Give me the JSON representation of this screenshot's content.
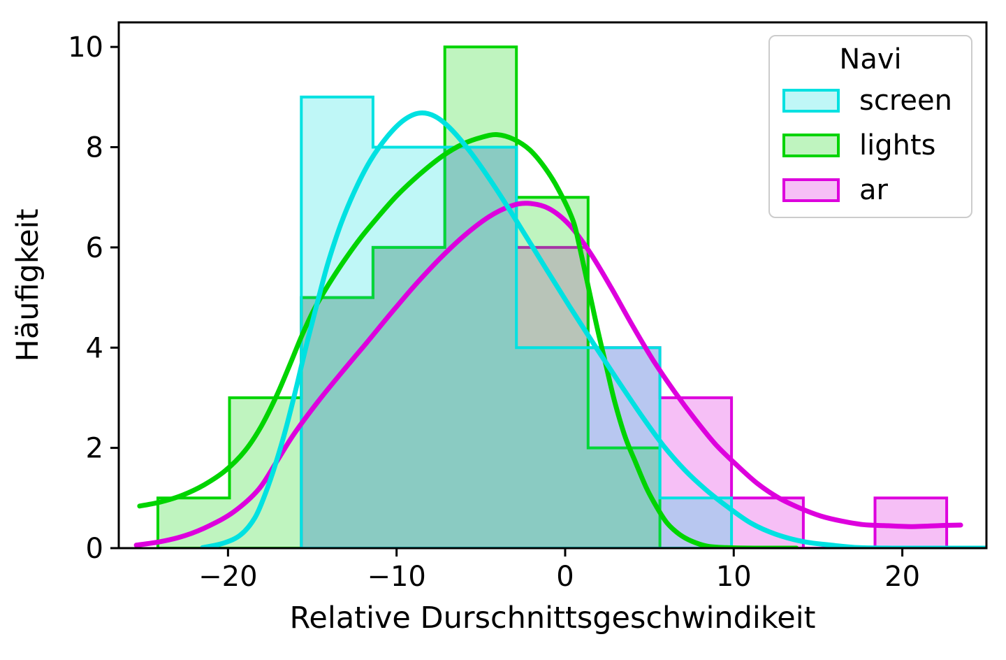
{
  "chart_data": {
    "type": "histogram+kde",
    "xlabel": "Relative Durschnittsgeschwindikeit",
    "ylabel": "Häufigkeit",
    "legend_title": "Navi",
    "legend_position": "upper right",
    "grid": false,
    "xlim": [
      -26.48,
      24.99
    ],
    "ylim": [
      0,
      10.49
    ],
    "x_ticks": [
      {
        "value": -20,
        "label": "−20"
      },
      {
        "value": -10,
        "label": "−10"
      },
      {
        "value": 0,
        "label": "0"
      },
      {
        "value": 10,
        "label": "10"
      },
      {
        "value": 20,
        "label": "20"
      }
    ],
    "y_ticks": [
      {
        "value": 0,
        "label": "0"
      },
      {
        "value": 2,
        "label": "2"
      },
      {
        "value": 4,
        "label": "4"
      },
      {
        "value": 6,
        "label": "6"
      },
      {
        "value": 8,
        "label": "8"
      },
      {
        "value": 10,
        "label": "10"
      }
    ],
    "bin_edges": [
      -24.16,
      -19.91,
      -15.65,
      -11.4,
      -7.14,
      -2.89,
      1.36,
      5.62,
      9.87,
      14.13,
      18.38,
      22.63
    ],
    "fill_opacity": 0.25,
    "draw_order": [
      2,
      1,
      0
    ],
    "series": [
      {
        "name": "screen",
        "color": "#00e1e1",
        "counts": [
          0,
          0,
          9,
          8,
          8,
          4,
          4,
          1,
          0,
          0,
          0
        ],
        "kde": [
          [
            -21.51,
            0.01
          ],
          [
            -20.26,
            0.1
          ],
          [
            -19.23,
            0.27
          ],
          [
            -18.4,
            0.61
          ],
          [
            -17.78,
            1.09
          ],
          [
            -17.16,
            1.7
          ],
          [
            -16.53,
            2.43
          ],
          [
            -15.91,
            3.26
          ],
          [
            -15.29,
            4.13
          ],
          [
            -14.67,
            4.94
          ],
          [
            -14.05,
            5.71
          ],
          [
            -13.3,
            6.47
          ],
          [
            -12.47,
            7.14
          ],
          [
            -11.56,
            7.73
          ],
          [
            -10.53,
            8.22
          ],
          [
            -9.57,
            8.54
          ],
          [
            -8.66,
            8.68
          ],
          [
            -7.75,
            8.62
          ],
          [
            -6.8,
            8.37
          ],
          [
            -5.55,
            7.87
          ],
          [
            -4.1,
            7.17
          ],
          [
            -2.65,
            6.4
          ],
          [
            -1.2,
            5.61
          ],
          [
            0.25,
            4.83
          ],
          [
            1.7,
            4.07
          ],
          [
            3.15,
            3.33
          ],
          [
            4.6,
            2.61
          ],
          [
            5.84,
            2.04
          ],
          [
            7.09,
            1.56
          ],
          [
            8.33,
            1.17
          ],
          [
            9.57,
            0.84
          ],
          [
            11.02,
            0.5
          ],
          [
            12.47,
            0.28
          ],
          [
            14.13,
            0.13
          ],
          [
            15.79,
            0.06
          ],
          [
            17.45,
            0.01
          ],
          [
            19.93,
            0.0
          ],
          [
            22.83,
            0.0
          ],
          [
            24.99,
            0.0
          ]
        ]
      },
      {
        "name": "lights",
        "color": "#00d400",
        "counts": [
          1,
          3,
          5,
          6,
          10,
          7,
          2,
          0,
          0,
          0,
          0
        ],
        "kde": [
          [
            -25.24,
            0.84
          ],
          [
            -24.0,
            0.92
          ],
          [
            -22.67,
            1.06
          ],
          [
            -21.43,
            1.26
          ],
          [
            -20.18,
            1.54
          ],
          [
            -19.02,
            1.93
          ],
          [
            -18.03,
            2.43
          ],
          [
            -17.12,
            3.04
          ],
          [
            -16.33,
            3.66
          ],
          [
            -15.62,
            4.24
          ],
          [
            -14.88,
            4.77
          ],
          [
            -14.05,
            5.25
          ],
          [
            -13.14,
            5.72
          ],
          [
            -12.18,
            6.17
          ],
          [
            -11.15,
            6.59
          ],
          [
            -9.99,
            7.03
          ],
          [
            -8.66,
            7.45
          ],
          [
            -7.33,
            7.81
          ],
          [
            -6.09,
            8.06
          ],
          [
            -4.93,
            8.2
          ],
          [
            -4.02,
            8.25
          ],
          [
            -3.07,
            8.16
          ],
          [
            -2.11,
            7.95
          ],
          [
            -1.2,
            7.59
          ],
          [
            -0.37,
            7.14
          ],
          [
            0.46,
            6.54
          ],
          [
            0.87,
            5.99
          ],
          [
            1.37,
            5.22
          ],
          [
            1.91,
            4.38
          ],
          [
            2.45,
            3.61
          ],
          [
            2.94,
            2.92
          ],
          [
            3.56,
            2.22
          ],
          [
            4.19,
            1.7
          ],
          [
            4.81,
            1.21
          ],
          [
            5.43,
            0.82
          ],
          [
            6.05,
            0.5
          ],
          [
            6.76,
            0.28
          ],
          [
            7.5,
            0.14
          ],
          [
            8.41,
            0.04
          ],
          [
            9.57,
            0.01
          ],
          [
            11.23,
            0.0
          ],
          [
            13.72,
            0.0
          ]
        ]
      },
      {
        "name": "ar",
        "color": "#dd00dd",
        "counts": [
          0,
          0,
          5,
          6,
          8,
          6,
          4,
          3,
          1,
          0,
          1
        ],
        "kde": [
          [
            -25.44,
            0.06
          ],
          [
            -24.0,
            0.13
          ],
          [
            -22.55,
            0.25
          ],
          [
            -21.09,
            0.45
          ],
          [
            -19.64,
            0.73
          ],
          [
            -18.19,
            1.17
          ],
          [
            -17.16,
            1.7
          ],
          [
            -16.12,
            2.26
          ],
          [
            -14.67,
            2.92
          ],
          [
            -13.22,
            3.52
          ],
          [
            -11.77,
            4.1
          ],
          [
            -10.32,
            4.69
          ],
          [
            -8.87,
            5.26
          ],
          [
            -7.42,
            5.78
          ],
          [
            -5.97,
            6.24
          ],
          [
            -4.52,
            6.61
          ],
          [
            -3.27,
            6.82
          ],
          [
            -2.24,
            6.88
          ],
          [
            -0.99,
            6.78
          ],
          [
            0.25,
            6.45
          ],
          [
            1.49,
            5.89
          ],
          [
            2.74,
            5.19
          ],
          [
            3.98,
            4.45
          ],
          [
            5.22,
            3.75
          ],
          [
            6.47,
            3.13
          ],
          [
            7.71,
            2.57
          ],
          [
            8.95,
            2.06
          ],
          [
            10.2,
            1.65
          ],
          [
            11.44,
            1.28
          ],
          [
            12.68,
            1.0
          ],
          [
            13.92,
            0.8
          ],
          [
            15.17,
            0.64
          ],
          [
            16.41,
            0.54
          ],
          [
            17.66,
            0.47
          ],
          [
            18.9,
            0.45
          ],
          [
            20.56,
            0.43
          ],
          [
            22.22,
            0.45
          ],
          [
            23.46,
            0.46
          ]
        ]
      }
    ],
    "style": {
      "spine_color": "#000000",
      "tick_color": "#000000",
      "legend_border_color": "#cccccc",
      "background": "#ffffff",
      "bar_line_width": 4,
      "kde_line_width": 7
    }
  }
}
